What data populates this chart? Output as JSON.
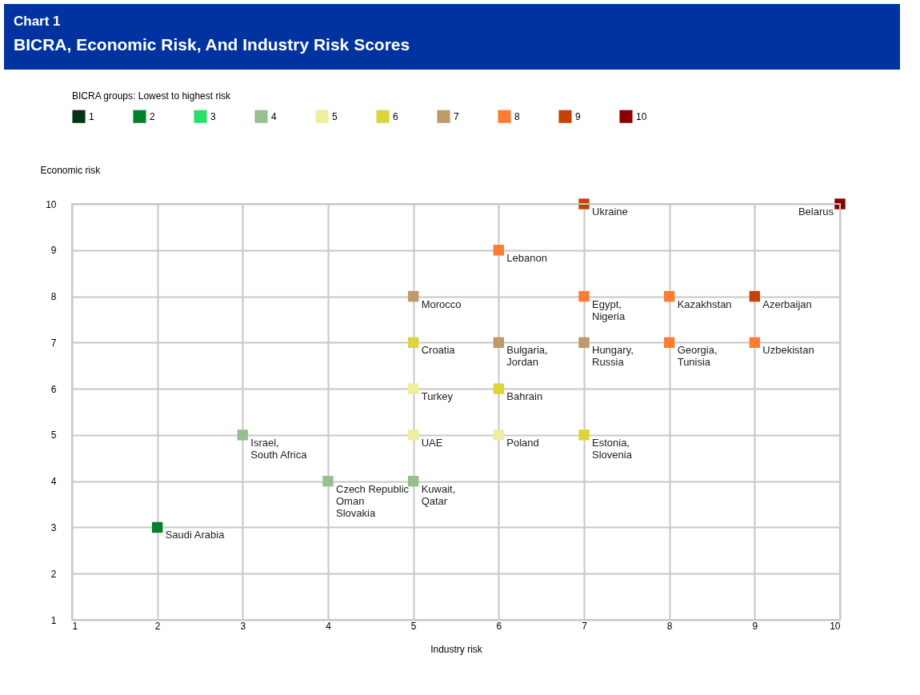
{
  "chart_data": {
    "type": "scatter",
    "title": "Chart 1",
    "subtitle": "BICRA, Economic Risk, And Industry Risk Scores",
    "xlabel": "Industry risk",
    "ylabel": "Economic risk",
    "legend_title": "BICRA groups: Lowest to highest risk",
    "legend": "top",
    "grid": true,
    "marker": "square",
    "xlim": [
      1,
      10
    ],
    "xticks": [
      1,
      2,
      3,
      4,
      5,
      6,
      7,
      8,
      9,
      10
    ],
    "ylim": [
      1,
      10
    ],
    "yticks": [
      1,
      2,
      3,
      4,
      5,
      6,
      7,
      8,
      9,
      10
    ],
    "series": [
      {
        "name": "1",
        "color": "#003314"
      },
      {
        "name": "2",
        "color": "#00822c",
        "x": [
          2
        ],
        "values": [
          3
        ]
      },
      {
        "name": "3",
        "color": "#2edd6a"
      },
      {
        "name": "4",
        "color": "#96c08e",
        "x": [
          3,
          4,
          5
        ],
        "values": [
          5,
          4,
          4
        ]
      },
      {
        "name": "5",
        "color": "#eeee9c",
        "x": [
          5,
          5,
          6
        ],
        "values": [
          6,
          5,
          5
        ]
      },
      {
        "name": "6",
        "color": "#dcd43a",
        "x": [
          5,
          6,
          7
        ],
        "values": [
          7,
          6,
          5
        ]
      },
      {
        "name": "7",
        "color": "#bc9a6a",
        "x": [
          5,
          6,
          7
        ],
        "values": [
          8,
          7,
          7
        ]
      },
      {
        "name": "8",
        "color": "#fc7c34",
        "x": [
          6,
          7,
          8,
          8,
          9
        ],
        "values": [
          9,
          8,
          8,
          7,
          7
        ]
      },
      {
        "name": "9",
        "color": "#c44408",
        "x": [
          7,
          9
        ],
        "values": [
          10,
          8
        ]
      },
      {
        "name": "10",
        "color": "#8c0000",
        "x": [
          10
        ],
        "values": [
          10
        ]
      }
    ],
    "annotations": [
      {
        "text": "Saudi Arabia",
        "x": 2,
        "y": 3
      },
      {
        "text": "Israel,\nSouth Africa",
        "x": 3,
        "y": 5
      },
      {
        "text": "Czech Republic\nOman\nSlovakia",
        "x": 4,
        "y": 4
      },
      {
        "text": "Kuwait,\nQatar",
        "x": 5,
        "y": 4
      },
      {
        "text": "Turkey",
        "x": 5,
        "y": 6
      },
      {
        "text": "UAE",
        "x": 5,
        "y": 5
      },
      {
        "text": "Poland",
        "x": 6,
        "y": 5
      },
      {
        "text": "Croatia",
        "x": 5,
        "y": 7
      },
      {
        "text": "Bahrain",
        "x": 6,
        "y": 6
      },
      {
        "text": "Estonia,\nSlovenia",
        "x": 7,
        "y": 5
      },
      {
        "text": "Morocco",
        "x": 5,
        "y": 8
      },
      {
        "text": "Bulgaria,\nJordan",
        "x": 6,
        "y": 7
      },
      {
        "text": "Hungary,\nRussia",
        "x": 7,
        "y": 7
      },
      {
        "text": "Lebanon",
        "x": 6,
        "y": 9
      },
      {
        "text": "Egypt,\nNigeria",
        "x": 7,
        "y": 8
      },
      {
        "text": "Kazakhstan",
        "x": 8,
        "y": 8
      },
      {
        "text": "Georgia,\nTunisia",
        "x": 8,
        "y": 7
      },
      {
        "text": "Uzbekistan",
        "x": 9,
        "y": 7
      },
      {
        "text": "Ukraine",
        "x": 7,
        "y": 10
      },
      {
        "text": "Azerbaijan",
        "x": 9,
        "y": 8
      },
      {
        "text": "Belarus",
        "x": 10,
        "y": 10
      }
    ]
  }
}
